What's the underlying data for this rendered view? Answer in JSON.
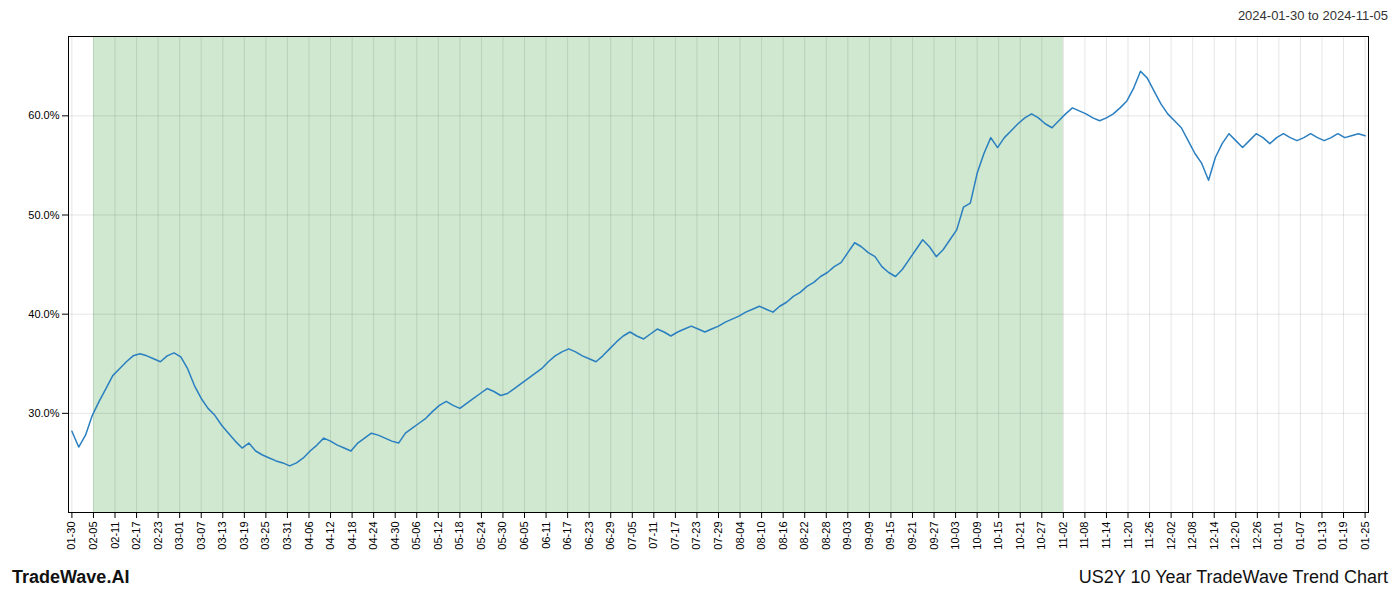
{
  "chart_data": {
    "type": "line",
    "title": "US2Y 10 Year TradeWave Trend Chart",
    "subtitle": "2024-01-30 to 2024-11-05",
    "annotations": [
      "TradeWave.AI"
    ],
    "color": "#2a7fc1",
    "grid": true,
    "values": [
      28.2,
      26.6,
      27.8,
      29.8,
      31.2,
      32.5,
      33.8,
      34.5,
      35.2,
      35.8,
      36.0,
      35.8,
      35.5,
      35.2,
      35.8,
      36.1,
      35.7,
      34.5,
      32.8,
      31.5,
      30.5,
      29.8,
      28.8,
      28.0,
      27.2,
      26.5,
      27.0,
      26.2,
      25.8,
      25.5,
      25.2,
      25.0,
      24.7,
      25.0,
      25.5,
      26.2,
      26.8,
      27.5,
      27.2,
      26.8,
      26.5,
      26.2,
      27.0,
      27.5,
      28.0,
      27.8,
      27.5,
      27.2,
      27.0,
      28.0,
      28.5,
      29.0,
      29.5,
      30.2,
      30.8,
      31.2,
      30.8,
      30.5,
      31.0,
      31.5,
      32.0,
      32.5,
      32.2,
      31.8,
      32.0,
      32.5,
      33.0,
      33.5,
      34.0,
      34.5,
      35.2,
      35.8,
      36.2,
      36.5,
      36.2,
      35.8,
      35.5,
      35.2,
      35.8,
      36.5,
      37.2,
      37.8,
      38.2,
      37.8,
      37.5,
      38.0,
      38.5,
      38.2,
      37.8,
      38.2,
      38.5,
      38.8,
      38.5,
      38.2,
      38.5,
      38.8,
      39.2,
      39.5,
      39.8,
      40.2,
      40.5,
      40.8,
      40.5,
      40.2,
      40.8,
      41.2,
      41.8,
      42.2,
      42.8,
      43.2,
      43.8,
      44.2,
      44.8,
      45.2,
      46.2,
      47.2,
      46.8,
      46.2,
      45.8,
      44.8,
      44.2,
      43.8,
      44.5,
      45.5,
      46.5,
      47.5,
      46.8,
      45.8,
      46.5,
      47.5,
      48.5,
      50.8,
      51.2,
      54.2,
      56.2,
      57.8,
      56.8,
      57.8,
      58.5,
      59.2,
      59.8,
      60.2,
      59.8,
      59.2,
      58.8,
      59.5,
      60.2,
      60.8,
      60.5,
      60.2,
      59.8,
      59.5,
      59.8,
      60.2,
      60.8,
      61.5,
      62.8,
      64.5,
      63.8,
      62.5,
      61.2,
      60.2,
      59.5,
      58.8,
      57.5,
      56.2,
      55.2,
      53.5,
      55.8,
      57.2,
      58.2,
      57.5,
      56.8,
      57.5,
      58.2,
      57.8,
      57.2,
      57.8,
      58.2,
      57.8,
      57.5,
      57.8,
      58.2,
      57.8,
      57.5,
      57.8,
      58.2,
      57.8,
      58.0,
      58.2,
      58.0
    ],
    "shaded_region": {
      "start": 3.1666666666666665,
      "end": 145.66666666666666,
      "color": "#cfe8cf"
    },
    "xlim": [
      -0.5,
      190.5
    ],
    "xticks": [
      {
        "value": 0,
        "label": "01-30"
      },
      {
        "value": 3.1666666666666665,
        "label": "02-05"
      },
      {
        "value": 6.333333333333333,
        "label": "02-11"
      },
      {
        "value": 9.5,
        "label": "02-17"
      },
      {
        "value": 12.666666666666666,
        "label": "02-23"
      },
      {
        "value": 15.833333333333334,
        "label": "03-01"
      },
      {
        "value": 19,
        "label": "03-07"
      },
      {
        "value": 22.166666666666668,
        "label": "03-13"
      },
      {
        "value": 25.333333333333332,
        "label": "03-19"
      },
      {
        "value": 28.5,
        "label": "03-25"
      },
      {
        "value": 31.666666666666668,
        "label": "03-31"
      },
      {
        "value": 34.833333333333336,
        "label": "04-06"
      },
      {
        "value": 38,
        "label": "04-12"
      },
      {
        "value": 41.166666666666664,
        "label": "04-18"
      },
      {
        "value": 44.333333333333336,
        "label": "04-24"
      },
      {
        "value": 47.5,
        "label": "04-30"
      },
      {
        "value": 50.666666666666664,
        "label": "05-06"
      },
      {
        "value": 53.833333333333336,
        "label": "05-12"
      },
      {
        "value": 57,
        "label": "05-18"
      },
      {
        "value": 60.166666666666664,
        "label": "05-24"
      },
      {
        "value": 63.333333333333336,
        "label": "05-30"
      },
      {
        "value": 66.5,
        "label": "06-05"
      },
      {
        "value": 69.66666666666667,
        "label": "06-11"
      },
      {
        "value": 72.83333333333333,
        "label": "06-17"
      },
      {
        "value": 76,
        "label": "06-23"
      },
      {
        "value": 79.16666666666667,
        "label": "06-29"
      },
      {
        "value": 82.33333333333333,
        "label": "07-05"
      },
      {
        "value": 85.5,
        "label": "07-11"
      },
      {
        "value": 88.66666666666667,
        "label": "07-17"
      },
      {
        "value": 91.83333333333333,
        "label": "07-23"
      },
      {
        "value": 95,
        "label": "07-29"
      },
      {
        "value": 98.16666666666667,
        "label": "08-04"
      },
      {
        "value": 101.33333333333333,
        "label": "08-10"
      },
      {
        "value": 104.5,
        "label": "08-16"
      },
      {
        "value": 107.66666666666667,
        "label": "08-22"
      },
      {
        "value": 110.83333333333333,
        "label": "08-28"
      },
      {
        "value": 114,
        "label": "09-03"
      },
      {
        "value": 117.16666666666667,
        "label": "09-09"
      },
      {
        "value": 120.33333333333333,
        "label": "09-15"
      },
      {
        "value": 123.5,
        "label": "09-21"
      },
      {
        "value": 126.66666666666667,
        "label": "09-27"
      },
      {
        "value": 129.83333333333334,
        "label": "10-03"
      },
      {
        "value": 133,
        "label": "10-09"
      },
      {
        "value": 136.16666666666666,
        "label": "10-15"
      },
      {
        "value": 139.33333333333334,
        "label": "10-21"
      },
      {
        "value": 142.5,
        "label": "10-27"
      },
      {
        "value": 145.66666666666666,
        "label": "11-02"
      },
      {
        "value": 148.83333333333334,
        "label": "11-08"
      },
      {
        "value": 152,
        "label": "11-14"
      },
      {
        "value": 155.16666666666666,
        "label": "11-20"
      },
      {
        "value": 158.33333333333334,
        "label": "11-26"
      },
      {
        "value": 161.5,
        "label": "12-02"
      },
      {
        "value": 164.66666666666666,
        "label": "12-08"
      },
      {
        "value": 167.83333333333334,
        "label": "12-14"
      },
      {
        "value": 171,
        "label": "12-20"
      },
      {
        "value": 174.16666666666666,
        "label": "12-26"
      },
      {
        "value": 177.33333333333334,
        "label": "01-01"
      },
      {
        "value": 180.5,
        "label": "01-07"
      },
      {
        "value": 183.66666666666666,
        "label": "01-13"
      },
      {
        "value": 186.83333333333334,
        "label": "01-19"
      },
      {
        "value": 190,
        "label": "01-25"
      }
    ],
    "ylim": [
      20.0,
      68.0
    ],
    "yticks": [
      {
        "value": 30.0,
        "label": "30.0%"
      },
      {
        "value": 40.0,
        "label": "40.0%"
      },
      {
        "value": 50.0,
        "label": "50.0%"
      },
      {
        "value": 60.0,
        "label": "60.0%"
      }
    ]
  }
}
